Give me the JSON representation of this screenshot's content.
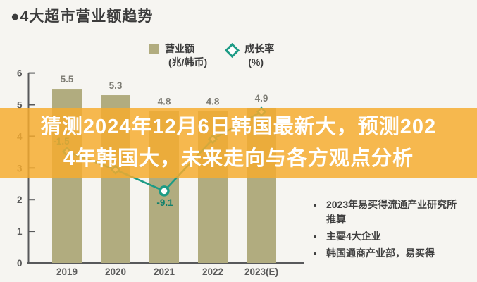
{
  "page": {
    "title": "●4大超市营业额趋势"
  },
  "overlay": {
    "line1": "猜测2024年12月6日韩国最新大，预测202",
    "line2": "4年韩国大，未来走向与各方观点分析",
    "full_text": "猜测2024年12月6日韩国最新大，预测2024年韩国大，未来走向与各方观点分析",
    "background_color": "#f6ac2f",
    "text_color": "#ffffff"
  },
  "legend": {
    "items": [
      {
        "label": "营业额",
        "sublabel": "(兆/韩币)",
        "marker": "square",
        "color": "#b1ac7f"
      },
      {
        "label": "成长率",
        "sublabel": "(%)",
        "marker": "diamond",
        "color": "#1d9b85"
      }
    ]
  },
  "notes": {
    "items": [
      "2023年易买得流通产业研究所推算",
      "主要4大企业",
      "韩国通商产业部，易买得"
    ]
  },
  "chart_data": {
    "type": "bar",
    "title": "4大超市营业额趋势",
    "categories": [
      "2019",
      "2020",
      "2021",
      "2022",
      "2023(E)"
    ],
    "series": [
      {
        "name": "营业额(兆/韩币)",
        "type": "bar",
        "color": "#b1ac7f",
        "values": [
          5.5,
          5.3,
          4.8,
          4.8,
          4.9
        ]
      },
      {
        "name": "成长率(%)",
        "type": "line",
        "color": "#1d9b85",
        "marker": "diamond-white-fill",
        "values": [
          -1.5,
          -5.0,
          -9.1,
          0.9,
          6.2
        ],
        "visible_point_labels": [
          {
            "index": 0,
            "text": "-1.5"
          },
          {
            "index": 2,
            "text": "-9.1"
          }
        ]
      }
    ],
    "left_axis": {
      "min": 0,
      "max": 6,
      "ticks": [
        0,
        1,
        2,
        3,
        4,
        5,
        6
      ]
    },
    "right_axis_visible": false,
    "grid": false,
    "legend_position": "top"
  }
}
